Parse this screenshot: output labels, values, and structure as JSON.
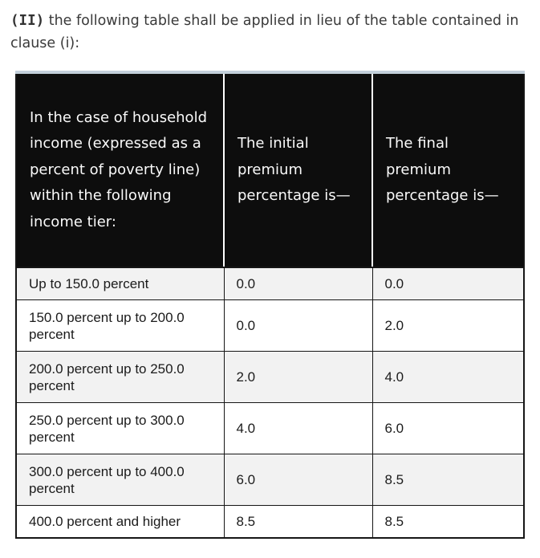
{
  "intro": {
    "marker": "(II)",
    "text": " the following table shall be applied in lieu of the table contained in clause (i):"
  },
  "table": {
    "headers": {
      "tier": "In the case of household income (expressed as a percent of poverty line) within the following income tier:",
      "initial": "The initial premium percentage is—",
      "final": "The final premium percentage is—"
    },
    "rows": [
      {
        "tier": "Up to 150.0 percent",
        "initial": "0.0",
        "final": "0.0"
      },
      {
        "tier": "150.0 percent up to 200.0 percent",
        "initial": "0.0",
        "final": "2.0"
      },
      {
        "tier": "200.0 percent up to 250.0 percent",
        "initial": "2.0",
        "final": "4.0"
      },
      {
        "tier": "250.0 percent up to 300.0 percent",
        "initial": "4.0",
        "final": "6.0"
      },
      {
        "tier": "300.0 percent up to 400.0 percent",
        "initial": "6.0",
        "final": "8.5"
      },
      {
        "tier": "400.0 percent and higher",
        "initial": "8.5",
        "final": "8.5"
      }
    ],
    "colors": {
      "header_bg": "#0d0d0d",
      "header_text": "#fafafa",
      "row_alt_bg": "#f2f2f2",
      "row_bg": "#ffffff",
      "border": "#161616",
      "top_accent": "#c3d0db",
      "paragraph_text": "#3a3a3a"
    }
  }
}
